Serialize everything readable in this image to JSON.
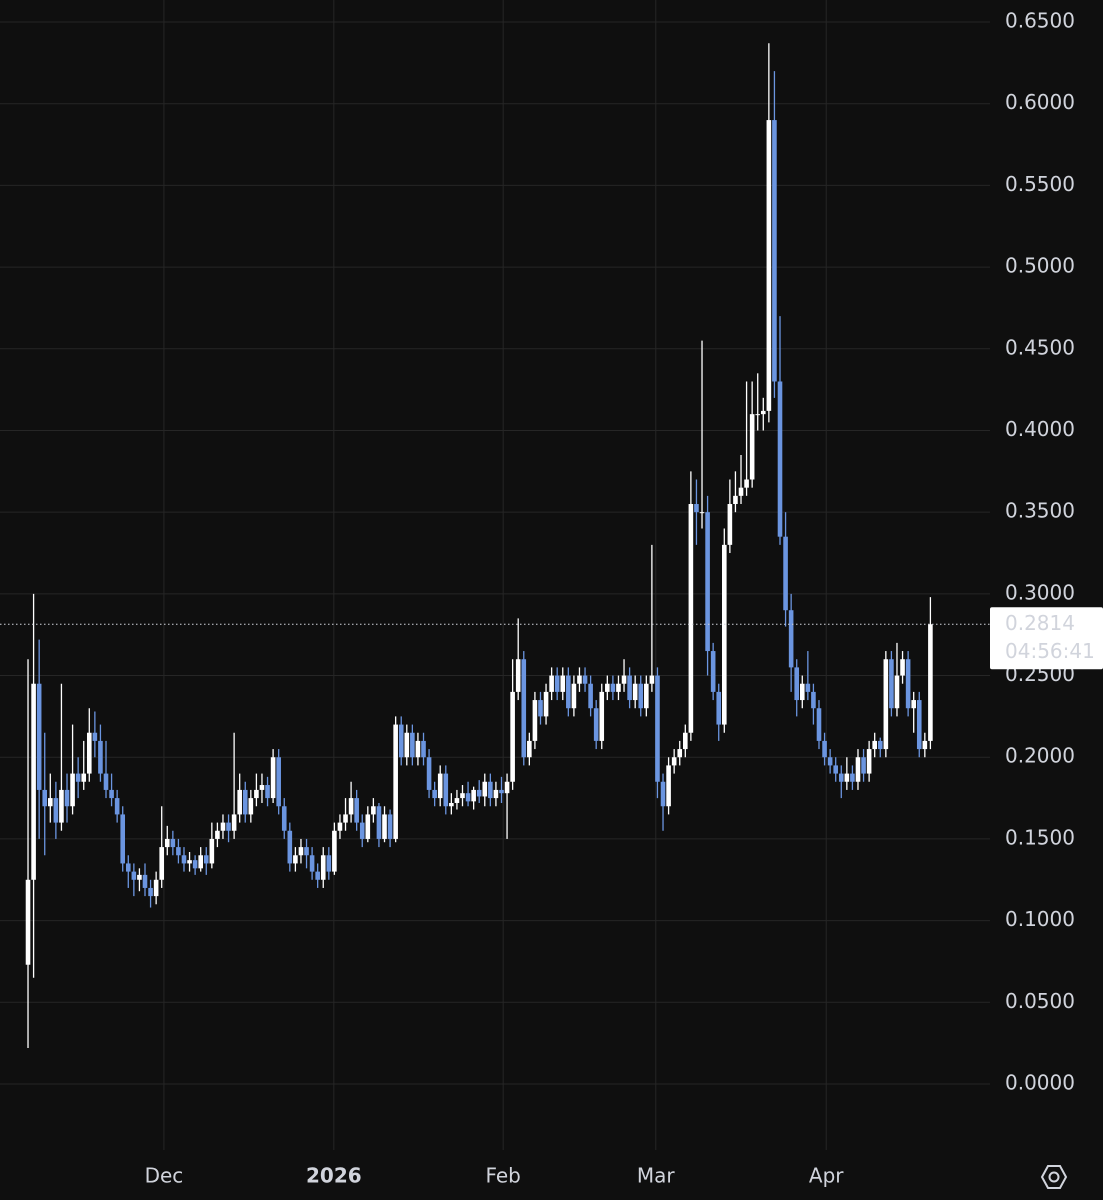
{
  "chart_data": {
    "type": "candlestick",
    "up_color": "#ffffff",
    "down_color": "#6b95e0",
    "grid": true,
    "ylim": [
      -0.0404,
      0.6635
    ],
    "yticks": [
      {
        "value": 0,
        "label": "0.0000"
      },
      {
        "value": 0.05,
        "label": "0.0500"
      },
      {
        "value": 0.1,
        "label": "0.1000"
      },
      {
        "value": 0.15,
        "label": "0.1500"
      },
      {
        "value": 0.2,
        "label": "0.2000"
      },
      {
        "value": 0.25,
        "label": "0.2500"
      },
      {
        "value": 0.3,
        "label": "0.3000"
      },
      {
        "value": 0.35,
        "label": "0.3500"
      },
      {
        "value": 0.4,
        "label": "0.4000"
      },
      {
        "value": 0.45,
        "label": "0.4500"
      },
      {
        "value": 0.5,
        "label": "0.5000"
      },
      {
        "value": 0.55,
        "label": "0.5500"
      },
      {
        "value": 0.6,
        "label": "0.6000"
      },
      {
        "value": 0.65,
        "label": "0.6500"
      }
    ],
    "xlim": [
      -5.03,
      172.7
    ],
    "xticks": [
      {
        "value": 24.4,
        "label": "Dec"
      },
      {
        "value": 54.9,
        "label": "2026"
      },
      {
        "value": 85.3,
        "label": "Feb"
      },
      {
        "value": 112.7,
        "label": "Mar"
      },
      {
        "value": 143.3,
        "label": "Apr"
      }
    ],
    "countdown": "04:56:41",
    "open": [
      0.073,
      0.125,
      0.245,
      0.18,
      0.17,
      0.175,
      0.16,
      0.18,
      0.17,
      0.19,
      0.185,
      0.19,
      0.215,
      0.21,
      0.19,
      0.18,
      0.175,
      0.165,
      0.135,
      0.13,
      0.125,
      0.128,
      0.12,
      0.115,
      0.125,
      0.145,
      0.15,
      0.145,
      0.14,
      0.135,
      0.137,
      0.132,
      0.14,
      0.135,
      0.15,
      0.155,
      0.16,
      0.155,
      0.165,
      0.18,
      0.165,
      0.175,
      0.18,
      0.183,
      0.175,
      0.2,
      0.17,
      0.155,
      0.135,
      0.14,
      0.145,
      0.14,
      0.13,
      0.125,
      0.14,
      0.13,
      0.155,
      0.16,
      0.165,
      0.175,
      0.16,
      0.15,
      0.165,
      0.17,
      0.15,
      0.165,
      0.15,
      0.22,
      0.2,
      0.215,
      0.2,
      0.21,
      0.2,
      0.18,
      0.175,
      0.19,
      0.17,
      0.172,
      0.175,
      0.178,
      0.173,
      0.18,
      0.176,
      0.185,
      0.175,
      0.18,
      0.178,
      0.185,
      0.24,
      0.26,
      0.2,
      0.21,
      0.235,
      0.225,
      0.24,
      0.25,
      0.24,
      0.25,
      0.23,
      0.245,
      0.25,
      0.245,
      0.23,
      0.21,
      0.24,
      0.245,
      0.24,
      0.245,
      0.25,
      0.235,
      0.245,
      0.23,
      0.245,
      0.25,
      0.185,
      0.17,
      0.195,
      0.2,
      0.205,
      0.215,
      0.355,
      0.35,
      0.35,
      0.265,
      0.24,
      0.22,
      0.33,
      0.355,
      0.36,
      0.365,
      0.37,
      0.41,
      0.41,
      0.412,
      0.59,
      0.43,
      0.335,
      0.29,
      0.255,
      0.235,
      0.245,
      0.24,
      0.23,
      0.21,
      0.2,
      0.195,
      0.19,
      0.185,
      0.19,
      0.185,
      0.2,
      0.19,
      0.205,
      0.21,
      0.205,
      0.26,
      0.23,
      0.25,
      0.26,
      0.23,
      0.235,
      0.205,
      0.21
    ],
    "high": [
      0.26,
      0.3,
      0.272,
      0.215,
      0.19,
      0.185,
      0.245,
      0.19,
      0.22,
      0.2,
      0.21,
      0.23,
      0.228,
      0.22,
      0.21,
      0.19,
      0.18,
      0.17,
      0.14,
      0.135,
      0.132,
      0.135,
      0.125,
      0.13,
      0.17,
      0.158,
      0.155,
      0.15,
      0.145,
      0.142,
      0.14,
      0.145,
      0.145,
      0.16,
      0.16,
      0.165,
      0.165,
      0.215,
      0.19,
      0.185,
      0.18,
      0.19,
      0.19,
      0.188,
      0.205,
      0.205,
      0.175,
      0.16,
      0.145,
      0.15,
      0.15,
      0.145,
      0.135,
      0.145,
      0.145,
      0.16,
      0.165,
      0.175,
      0.185,
      0.18,
      0.165,
      0.17,
      0.175,
      0.172,
      0.17,
      0.168,
      0.225,
      0.225,
      0.22,
      0.22,
      0.215,
      0.215,
      0.205,
      0.185,
      0.195,
      0.195,
      0.178,
      0.18,
      0.183,
      0.185,
      0.182,
      0.186,
      0.19,
      0.19,
      0.185,
      0.188,
      0.19,
      0.26,
      0.285,
      0.265,
      0.215,
      0.24,
      0.24,
      0.245,
      0.255,
      0.255,
      0.255,
      0.255,
      0.25,
      0.255,
      0.255,
      0.25,
      0.235,
      0.245,
      0.25,
      0.25,
      0.25,
      0.26,
      0.255,
      0.25,
      0.25,
      0.25,
      0.33,
      0.255,
      0.19,
      0.2,
      0.205,
      0.21,
      0.22,
      0.375,
      0.37,
      0.455,
      0.36,
      0.27,
      0.245,
      0.34,
      0.37,
      0.375,
      0.385,
      0.43,
      0.43,
      0.435,
      0.42,
      0.637,
      0.62,
      0.47,
      0.35,
      0.3,
      0.26,
      0.25,
      0.265,
      0.245,
      0.235,
      0.215,
      0.205,
      0.2,
      0.195,
      0.2,
      0.195,
      0.205,
      0.205,
      0.21,
      0.215,
      0.212,
      0.265,
      0.265,
      0.27,
      0.265,
      0.265,
      0.24,
      0.24,
      0.215,
      0.298
    ],
    "low": [
      0.022,
      0.065,
      0.15,
      0.14,
      0.16,
      0.15,
      0.155,
      0.16,
      0.165,
      0.175,
      0.18,
      0.185,
      0.2,
      0.185,
      0.175,
      0.17,
      0.16,
      0.13,
      0.12,
      0.115,
      0.118,
      0.115,
      0.108,
      0.11,
      0.12,
      0.14,
      0.14,
      0.135,
      0.13,
      0.13,
      0.128,
      0.13,
      0.128,
      0.132,
      0.145,
      0.15,
      0.148,
      0.15,
      0.16,
      0.16,
      0.16,
      0.17,
      0.172,
      0.17,
      0.172,
      0.165,
      0.15,
      0.13,
      0.13,
      0.135,
      0.132,
      0.125,
      0.12,
      0.12,
      0.125,
      0.128,
      0.15,
      0.155,
      0.16,
      0.155,
      0.145,
      0.148,
      0.16,
      0.145,
      0.148,
      0.145,
      0.148,
      0.195,
      0.195,
      0.195,
      0.195,
      0.195,
      0.175,
      0.17,
      0.17,
      0.165,
      0.165,
      0.168,
      0.17,
      0.17,
      0.168,
      0.172,
      0.17,
      0.17,
      0.17,
      0.172,
      0.15,
      0.18,
      0.235,
      0.195,
      0.195,
      0.205,
      0.22,
      0.22,
      0.235,
      0.235,
      0.235,
      0.225,
      0.225,
      0.24,
      0.24,
      0.225,
      0.205,
      0.205,
      0.235,
      0.235,
      0.235,
      0.24,
      0.23,
      0.23,
      0.225,
      0.225,
      0.24,
      0.175,
      0.155,
      0.165,
      0.19,
      0.195,
      0.2,
      0.21,
      0.33,
      0.34,
      0.25,
      0.235,
      0.21,
      0.215,
      0.325,
      0.35,
      0.355,
      0.36,
      0.365,
      0.4,
      0.4,
      0.405,
      0.42,
      0.33,
      0.28,
      0.24,
      0.225,
      0.23,
      0.235,
      0.22,
      0.205,
      0.195,
      0.19,
      0.185,
      0.175,
      0.18,
      0.18,
      0.18,
      0.185,
      0.185,
      0.2,
      0.2,
      0.2,
      0.225,
      0.225,
      0.245,
      0.225,
      0.215,
      0.2,
      0.2,
      0.205
    ],
    "close": [
      0.125,
      0.245,
      0.18,
      0.17,
      0.175,
      0.16,
      0.18,
      0.17,
      0.19,
      0.185,
      0.19,
      0.215,
      0.21,
      0.19,
      0.18,
      0.175,
      0.165,
      0.135,
      0.13,
      0.125,
      0.128,
      0.12,
      0.115,
      0.125,
      0.145,
      0.15,
      0.145,
      0.14,
      0.135,
      0.137,
      0.132,
      0.14,
      0.135,
      0.15,
      0.155,
      0.16,
      0.155,
      0.165,
      0.18,
      0.165,
      0.175,
      0.18,
      0.183,
      0.175,
      0.2,
      0.17,
      0.155,
      0.135,
      0.14,
      0.145,
      0.14,
      0.13,
      0.125,
      0.14,
      0.13,
      0.155,
      0.16,
      0.165,
      0.175,
      0.16,
      0.15,
      0.165,
      0.17,
      0.15,
      0.165,
      0.15,
      0.22,
      0.2,
      0.215,
      0.2,
      0.21,
      0.2,
      0.18,
      0.175,
      0.19,
      0.17,
      0.172,
      0.175,
      0.178,
      0.173,
      0.18,
      0.176,
      0.185,
      0.175,
      0.18,
      0.178,
      0.185,
      0.24,
      0.26,
      0.2,
      0.21,
      0.235,
      0.225,
      0.24,
      0.25,
      0.24,
      0.25,
      0.23,
      0.245,
      0.25,
      0.245,
      0.23,
      0.21,
      0.24,
      0.245,
      0.24,
      0.245,
      0.25,
      0.235,
      0.245,
      0.23,
      0.245,
      0.25,
      0.185,
      0.17,
      0.195,
      0.2,
      0.205,
      0.215,
      0.355,
      0.35,
      0.35,
      0.265,
      0.24,
      0.22,
      0.33,
      0.355,
      0.36,
      0.365,
      0.37,
      0.41,
      0.41,
      0.412,
      0.59,
      0.43,
      0.335,
      0.29,
      0.255,
      0.235,
      0.245,
      0.24,
      0.23,
      0.21,
      0.2,
      0.195,
      0.19,
      0.185,
      0.19,
      0.185,
      0.2,
      0.19,
      0.205,
      0.21,
      0.205,
      0.26,
      0.23,
      0.25,
      0.26,
      0.23,
      0.235,
      0.205,
      0.21,
      0.2814
    ]
  }
}
